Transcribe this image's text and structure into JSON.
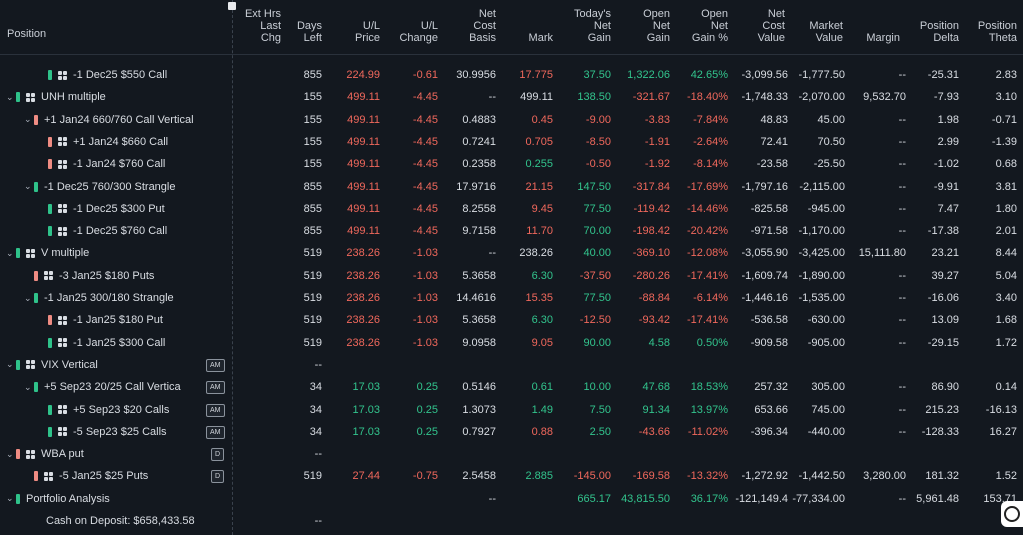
{
  "header": {
    "position": "Position",
    "ext_hrs": "Ext Hrs\nLast\nChg",
    "days_left": "Days\nLeft",
    "ul_price": "U/L\nPrice",
    "ul_change": "U/L\nChange",
    "net_cost_basis": "Net\nCost\nBasis",
    "mark": "Mark",
    "todays_net_gain": "Today's\nNet\nGain",
    "open_net_gain": "Open\nNet\nGain",
    "open_net_gain_pct": "Open\nNet\nGain %",
    "net_cost_value": "Net\nCost\nValue",
    "market_value": "Market\nValue",
    "margin": "Margin",
    "position_delta": "Position\nDelta",
    "position_theta": "Position\nTheta"
  },
  "rows": [
    {
      "indent": 3,
      "chev": "",
      "bar": "g",
      "grid": true,
      "label": "-1 Dec25 $550 Call",
      "badge": "",
      "days": "855",
      "ulp": "224.99",
      "ulc": "-0.61",
      "ncb": "30.9956",
      "mark": "17.775",
      "tng": "37.50",
      "ong": "1,322.06",
      "ongp": "42.65%",
      "ncv": "-3,099.56",
      "mv": "-1,777.50",
      "margin": "--",
      "delta": "-25.31",
      "theta": "2.83",
      "c_ulp": "red",
      "c_ulc": "red",
      "c_mark": "red",
      "c_tng": "green",
      "c_ong": "green",
      "c_ongp": "green"
    },
    {
      "indent": 1,
      "chev": "v",
      "bar": "g",
      "grid": true,
      "label": "UNH multiple",
      "badge": "",
      "days": "155",
      "ulp": "499.11",
      "ulc": "-4.45",
      "ncb": "--",
      "mark": "499.11",
      "tng": "138.50",
      "ong": "-321.67",
      "ongp": "-18.40%",
      "ncv": "-1,748.33",
      "mv": "-2,070.00",
      "margin": "9,532.70",
      "delta": "-7.93",
      "theta": "3.10",
      "c_ulp": "red",
      "c_ulc": "red",
      "c_mark": "white",
      "c_tng": "green",
      "c_ong": "red",
      "c_ongp": "red"
    },
    {
      "indent": 2,
      "chev": "v",
      "bar": "r",
      "grid": false,
      "label": "+1 Jan24 660/760 Call Vertical",
      "badge": "",
      "days": "155",
      "ulp": "499.11",
      "ulc": "-4.45",
      "ncb": "0.4883",
      "mark": "0.45",
      "tng": "-9.00",
      "ong": "-3.83",
      "ongp": "-7.84%",
      "ncv": "48.83",
      "mv": "45.00",
      "margin": "--",
      "delta": "1.98",
      "theta": "-0.71",
      "c_ulp": "red",
      "c_ulc": "red",
      "c_mark": "red",
      "c_tng": "red",
      "c_ong": "red",
      "c_ongp": "red"
    },
    {
      "indent": 3,
      "chev": "",
      "bar": "r",
      "grid": true,
      "label": "+1 Jan24 $660 Call",
      "badge": "",
      "days": "155",
      "ulp": "499.11",
      "ulc": "-4.45",
      "ncb": "0.7241",
      "mark": "0.705",
      "tng": "-8.50",
      "ong": "-1.91",
      "ongp": "-2.64%",
      "ncv": "72.41",
      "mv": "70.50",
      "margin": "--",
      "delta": "2.99",
      "theta": "-1.39",
      "c_ulp": "red",
      "c_ulc": "red",
      "c_mark": "red",
      "c_tng": "red",
      "c_ong": "red",
      "c_ongp": "red"
    },
    {
      "indent": 3,
      "chev": "",
      "bar": "r",
      "grid": true,
      "label": "-1 Jan24 $760 Call",
      "badge": "",
      "days": "155",
      "ulp": "499.11",
      "ulc": "-4.45",
      "ncb": "0.2358",
      "mark": "0.255",
      "tng": "-0.50",
      "ong": "-1.92",
      "ongp": "-8.14%",
      "ncv": "-23.58",
      "mv": "-25.50",
      "margin": "--",
      "delta": "-1.02",
      "theta": "0.68",
      "c_ulp": "red",
      "c_ulc": "red",
      "c_mark": "green",
      "c_tng": "red",
      "c_ong": "red",
      "c_ongp": "red"
    },
    {
      "indent": 2,
      "chev": "v",
      "bar": "g",
      "grid": false,
      "label": "-1 Dec25 760/300 Strangle",
      "badge": "",
      "days": "855",
      "ulp": "499.11",
      "ulc": "-4.45",
      "ncb": "17.9716",
      "mark": "21.15",
      "tng": "147.50",
      "ong": "-317.84",
      "ongp": "-17.69%",
      "ncv": "-1,797.16",
      "mv": "-2,115.00",
      "margin": "--",
      "delta": "-9.91",
      "theta": "3.81",
      "c_ulp": "red",
      "c_ulc": "red",
      "c_mark": "red",
      "c_tng": "green",
      "c_ong": "red",
      "c_ongp": "red"
    },
    {
      "indent": 3,
      "chev": "",
      "bar": "g",
      "grid": true,
      "label": "-1 Dec25 $300 Put",
      "badge": "",
      "days": "855",
      "ulp": "499.11",
      "ulc": "-4.45",
      "ncb": "8.2558",
      "mark": "9.45",
      "tng": "77.50",
      "ong": "-119.42",
      "ongp": "-14.46%",
      "ncv": "-825.58",
      "mv": "-945.00",
      "margin": "--",
      "delta": "7.47",
      "theta": "1.80",
      "c_ulp": "red",
      "c_ulc": "red",
      "c_mark": "red",
      "c_tng": "green",
      "c_ong": "red",
      "c_ongp": "red"
    },
    {
      "indent": 3,
      "chev": "",
      "bar": "g",
      "grid": true,
      "label": "-1 Dec25 $760 Call",
      "badge": "",
      "days": "855",
      "ulp": "499.11",
      "ulc": "-4.45",
      "ncb": "9.7158",
      "mark": "11.70",
      "tng": "70.00",
      "ong": "-198.42",
      "ongp": "-20.42%",
      "ncv": "-971.58",
      "mv": "-1,170.00",
      "margin": "--",
      "delta": "-17.38",
      "theta": "2.01",
      "c_ulp": "red",
      "c_ulc": "red",
      "c_mark": "red",
      "c_tng": "green",
      "c_ong": "red",
      "c_ongp": "red"
    },
    {
      "indent": 1,
      "chev": "v",
      "bar": "g",
      "grid": true,
      "label": "V multiple",
      "badge": "",
      "days": "519",
      "ulp": "238.26",
      "ulc": "-1.03",
      "ncb": "--",
      "mark": "238.26",
      "tng": "40.00",
      "ong": "-369.10",
      "ongp": "-12.08%",
      "ncv": "-3,055.90",
      "mv": "-3,425.00",
      "margin": "15,111.80",
      "delta": "23.21",
      "theta": "8.44",
      "c_ulp": "red",
      "c_ulc": "red",
      "c_mark": "white",
      "c_tng": "green",
      "c_ong": "red",
      "c_ongp": "red"
    },
    {
      "indent": 2,
      "chev": "",
      "bar": "r",
      "grid": true,
      "label": "-3 Jan25 $180 Puts",
      "badge": "",
      "days": "519",
      "ulp": "238.26",
      "ulc": "-1.03",
      "ncb": "5.3658",
      "mark": "6.30",
      "tng": "-37.50",
      "ong": "-280.26",
      "ongp": "-17.41%",
      "ncv": "-1,609.74",
      "mv": "-1,890.00",
      "margin": "--",
      "delta": "39.27",
      "theta": "5.04",
      "c_ulp": "red",
      "c_ulc": "red",
      "c_mark": "green",
      "c_tng": "red",
      "c_ong": "red",
      "c_ongp": "red"
    },
    {
      "indent": 2,
      "chev": "v",
      "bar": "g",
      "grid": false,
      "label": "-1 Jan25 300/180 Strangle",
      "badge": "",
      "days": "519",
      "ulp": "238.26",
      "ulc": "-1.03",
      "ncb": "14.4616",
      "mark": "15.35",
      "tng": "77.50",
      "ong": "-88.84",
      "ongp": "-6.14%",
      "ncv": "-1,446.16",
      "mv": "-1,535.00",
      "margin": "--",
      "delta": "-16.06",
      "theta": "3.40",
      "c_ulp": "red",
      "c_ulc": "red",
      "c_mark": "red",
      "c_tng": "green",
      "c_ong": "red",
      "c_ongp": "red"
    },
    {
      "indent": 3,
      "chev": "",
      "bar": "r",
      "grid": true,
      "label": "-1 Jan25 $180 Put",
      "badge": "",
      "days": "519",
      "ulp": "238.26",
      "ulc": "-1.03",
      "ncb": "5.3658",
      "mark": "6.30",
      "tng": "-12.50",
      "ong": "-93.42",
      "ongp": "-17.41%",
      "ncv": "-536.58",
      "mv": "-630.00",
      "margin": "--",
      "delta": "13.09",
      "theta": "1.68",
      "c_ulp": "red",
      "c_ulc": "red",
      "c_mark": "green",
      "c_tng": "red",
      "c_ong": "red",
      "c_ongp": "red"
    },
    {
      "indent": 3,
      "chev": "",
      "bar": "g",
      "grid": true,
      "label": "-1 Jan25 $300 Call",
      "badge": "",
      "days": "519",
      "ulp": "238.26",
      "ulc": "-1.03",
      "ncb": "9.0958",
      "mark": "9.05",
      "tng": "90.00",
      "ong": "4.58",
      "ongp": "0.50%",
      "ncv": "-909.58",
      "mv": "-905.00",
      "margin": "--",
      "delta": "-29.15",
      "theta": "1.72",
      "c_ulp": "red",
      "c_ulc": "red",
      "c_mark": "red",
      "c_tng": "green",
      "c_ong": "green",
      "c_ongp": "green"
    },
    {
      "indent": 1,
      "chev": "v",
      "bar": "g",
      "grid": true,
      "label": "VIX Vertical",
      "badge": "AM",
      "days": "--",
      "ulp": "",
      "ulc": "",
      "ncb": "",
      "mark": "",
      "tng": "",
      "ong": "",
      "ongp": "",
      "ncv": "",
      "mv": "",
      "margin": "",
      "delta": "",
      "theta": "",
      "c_ulp": "green",
      "c_ulc": "green",
      "c_mark": "green",
      "c_tng": "green",
      "c_ong": "green",
      "c_ongp": "green"
    },
    {
      "indent": 2,
      "chev": "v",
      "bar": "g",
      "grid": false,
      "label": "+5 Sep23 20/25 Call Vertica",
      "badge": "AM",
      "days": "34",
      "ulp": "17.03",
      "ulc": "0.25",
      "ncb": "0.5146",
      "mark": "0.61",
      "tng": "10.00",
      "ong": "47.68",
      "ongp": "18.53%",
      "ncv": "257.32",
      "mv": "305.00",
      "margin": "--",
      "delta": "86.90",
      "theta": "0.14",
      "c_ulp": "green",
      "c_ulc": "green",
      "c_mark": "green",
      "c_tng": "green",
      "c_ong": "green",
      "c_ongp": "green"
    },
    {
      "indent": 3,
      "chev": "",
      "bar": "g",
      "grid": true,
      "label": "+5 Sep23 $20 Calls",
      "badge": "AM",
      "days": "34",
      "ulp": "17.03",
      "ulc": "0.25",
      "ncb": "1.3073",
      "mark": "1.49",
      "tng": "7.50",
      "ong": "91.34",
      "ongp": "13.97%",
      "ncv": "653.66",
      "mv": "745.00",
      "margin": "--",
      "delta": "215.23",
      "theta": "-16.13",
      "c_ulp": "green",
      "c_ulc": "green",
      "c_mark": "green",
      "c_tng": "green",
      "c_ong": "green",
      "c_ongp": "green"
    },
    {
      "indent": 3,
      "chev": "",
      "bar": "g",
      "grid": true,
      "label": "-5 Sep23 $25 Calls",
      "badge": "AM",
      "days": "34",
      "ulp": "17.03",
      "ulc": "0.25",
      "ncb": "0.7927",
      "mark": "0.88",
      "tng": "2.50",
      "ong": "-43.66",
      "ongp": "-11.02%",
      "ncv": "-396.34",
      "mv": "-440.00",
      "margin": "--",
      "delta": "-128.33",
      "theta": "16.27",
      "c_ulp": "green",
      "c_ulc": "green",
      "c_mark": "red",
      "c_tng": "green",
      "c_ong": "red",
      "c_ongp": "red"
    },
    {
      "indent": 1,
      "chev": "v",
      "bar": "r",
      "grid": true,
      "label": "WBA put",
      "badge": "D",
      "days": "--",
      "ulp": "",
      "ulc": "",
      "ncb": "",
      "mark": "",
      "tng": "",
      "ong": "",
      "ongp": "",
      "ncv": "",
      "mv": "",
      "margin": "",
      "delta": "",
      "theta": "",
      "c_ulp": "red",
      "c_ulc": "red",
      "c_mark": "red",
      "c_tng": "red",
      "c_ong": "red",
      "c_ongp": "red"
    },
    {
      "indent": 2,
      "chev": "",
      "bar": "r",
      "grid": true,
      "label": "-5 Jan25 $25 Puts",
      "badge": "D",
      "days": "519",
      "ulp": "27.44",
      "ulc": "-0.75",
      "ncb": "2.5458",
      "mark": "2.885",
      "tng": "-145.00",
      "ong": "-169.58",
      "ongp": "-13.32%",
      "ncv": "-1,272.92",
      "mv": "-1,442.50",
      "margin": "3,280.00",
      "delta": "181.32",
      "theta": "1.52",
      "c_ulp": "red",
      "c_ulc": "red",
      "c_mark": "green",
      "c_tng": "red",
      "c_ong": "red",
      "c_ongp": "red"
    },
    {
      "indent": 0,
      "chev": "v",
      "bar": "g",
      "grid": false,
      "label": "Portfolio Analysis",
      "badge": "",
      "days": "",
      "ulp": "",
      "ulc": "",
      "ncb": "--",
      "mark": "",
      "tng": "665.17",
      "ong": "43,815.50",
      "ongp": "36.17%",
      "ncv": "-121,149.4",
      "mv": "-77,334.00",
      "margin": "--",
      "delta": "5,961.48",
      "theta": "153.71",
      "c_ulp": "white",
      "c_ulc": "white",
      "c_mark": "white",
      "c_tng": "green",
      "c_ong": "green",
      "c_ongp": "green"
    },
    {
      "indent": 4,
      "chev": "",
      "bar": "",
      "grid": false,
      "label": "Cash on Deposit: $658,433.58",
      "badge": "",
      "days": "--",
      "ulp": "",
      "ulc": "",
      "ncb": "",
      "mark": "",
      "tng": "",
      "ong": "",
      "ongp": "",
      "ncv": "",
      "mv": "",
      "margin": "",
      "delta": "",
      "theta": "",
      "c_ulp": "white",
      "c_ulc": "white",
      "c_mark": "white",
      "c_tng": "white",
      "c_ong": "white",
      "c_ongp": "white"
    }
  ]
}
